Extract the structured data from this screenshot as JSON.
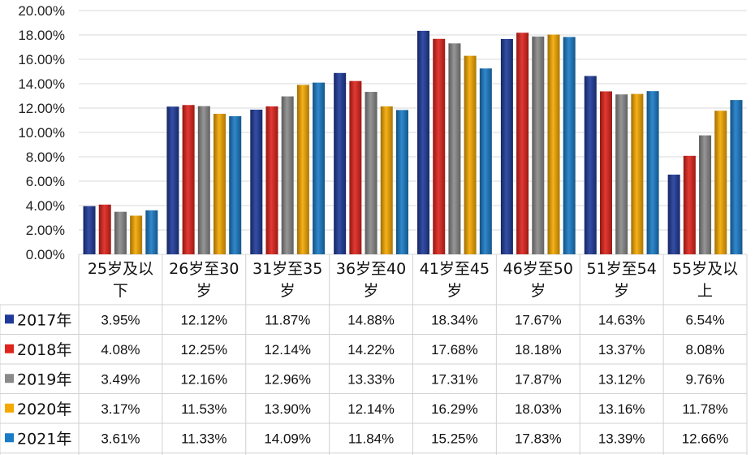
{
  "chart_data": {
    "type": "bar",
    "title": "",
    "xlabel": "",
    "ylabel": "",
    "ylim": [
      0,
      20
    ],
    "yticks": [
      "0.00%",
      "2.00%",
      "4.00%",
      "6.00%",
      "8.00%",
      "10.00%",
      "12.00%",
      "14.00%",
      "16.00%",
      "18.00%",
      "20.00%"
    ],
    "grid": true,
    "legend": "data-table",
    "categories": [
      [
        "25岁及以",
        "下"
      ],
      [
        "26岁至30",
        "岁"
      ],
      [
        "31岁至35",
        "岁"
      ],
      [
        "36岁至40",
        "岁"
      ],
      [
        "41岁至45",
        "岁"
      ],
      [
        "46岁至50",
        "岁"
      ],
      [
        "51岁至54",
        "岁"
      ],
      [
        "55岁及以",
        "上"
      ]
    ],
    "series": [
      {
        "name": "2017年",
        "color": "#1f3a9a",
        "values": [
          3.95,
          12.12,
          11.87,
          14.88,
          18.34,
          17.67,
          14.63,
          6.54
        ],
        "labels": [
          "3.95%",
          "12.12%",
          "11.87%",
          "14.88%",
          "18.34%",
          "17.67%",
          "14.63%",
          "6.54%"
        ]
      },
      {
        "name": "2018年",
        "color": "#e0231c",
        "values": [
          4.08,
          12.25,
          12.14,
          14.22,
          17.68,
          18.18,
          13.37,
          8.08
        ],
        "labels": [
          "4.08%",
          "12.25%",
          "12.14%",
          "14.22%",
          "17.68%",
          "18.18%",
          "13.37%",
          "8.08%"
        ]
      },
      {
        "name": "2019年",
        "color": "#8a8a8a",
        "values": [
          3.49,
          12.16,
          12.96,
          13.33,
          17.31,
          17.87,
          13.12,
          9.76
        ],
        "labels": [
          "3.49%",
          "12.16%",
          "12.96%",
          "13.33%",
          "17.31%",
          "17.87%",
          "13.12%",
          "9.76%"
        ]
      },
      {
        "name": "2020年",
        "color": "#f5a800",
        "values": [
          3.17,
          11.53,
          13.9,
          12.14,
          16.29,
          18.03,
          13.16,
          11.78
        ],
        "labels": [
          "3.17%",
          "11.53%",
          "13.90%",
          "12.14%",
          "16.29%",
          "18.03%",
          "13.16%",
          "11.78%"
        ]
      },
      {
        "name": "2021年",
        "color": "#1a7bc6",
        "values": [
          3.61,
          11.33,
          14.09,
          11.84,
          15.25,
          17.83,
          13.39,
          12.66
        ],
        "labels": [
          "3.61%",
          "11.33%",
          "14.09%",
          "11.84%",
          "15.25%",
          "17.83%",
          "13.39%",
          "12.66%"
        ]
      }
    ]
  }
}
